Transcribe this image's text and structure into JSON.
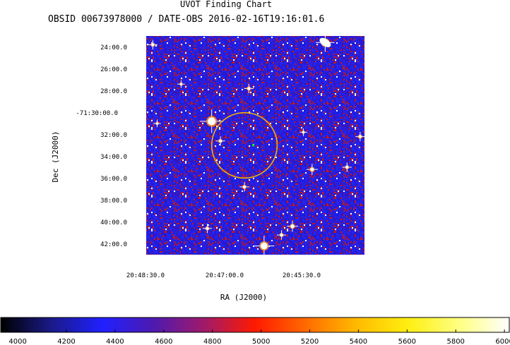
{
  "chart_data": {
    "type": "heatmap",
    "title": "UVOT Finding Chart",
    "subtitle": "OBSID 00673978000 / DATE-OBS 2016-02-16T19:16:01.6",
    "xlabel": "RA (J2000)",
    "ylabel": "Dec (J2000)",
    "x_ticks": [
      "20:48:30.0",
      "20:47:00.0",
      "20:45:30.0"
    ],
    "y_ticks": [
      "24:00.0",
      "26:00.0",
      "28:00.0",
      "-71:30:00.0",
      "32:00.0",
      "34:00.0",
      "36:00.0",
      "38:00.0",
      "40:00.0",
      "42:00.0"
    ],
    "colorbar": {
      "ticks": [
        4000,
        4200,
        4400,
        4600,
        4800,
        5000,
        5200,
        5400,
        5600,
        5800,
        6000
      ],
      "range": [
        3930,
        6020
      ],
      "colors": [
        "#000000",
        "#1a1a8a",
        "#2020ff",
        "#4d1ab0",
        "#a01a6a",
        "#ff1a00",
        "#ff6a00",
        "#ffbb00",
        "#ffee10",
        "#ffff80",
        "#ffffff"
      ]
    },
    "background_colors": [
      "#1c1ce0",
      "#2424ee",
      "#3a16b8",
      "#c41818",
      "#ffffff"
    ],
    "marker_color": "#f0b000",
    "stars": [
      {
        "x": 0.03,
        "y": 0.96,
        "size": 1.0
      },
      {
        "x": 0.82,
        "y": 0.97,
        "size": 2.0
      },
      {
        "x": 0.47,
        "y": 0.76,
        "size": 1.0
      },
      {
        "x": 0.3,
        "y": 0.61,
        "size": 2.5
      },
      {
        "x": 0.34,
        "y": 0.52,
        "size": 1.0
      },
      {
        "x": 0.45,
        "y": 0.31,
        "size": 1.0
      },
      {
        "x": 0.76,
        "y": 0.39,
        "size": 1.2
      },
      {
        "x": 0.92,
        "y": 0.4,
        "size": 1.0
      },
      {
        "x": 0.98,
        "y": 0.54,
        "size": 1.0
      },
      {
        "x": 0.72,
        "y": 0.56,
        "size": 0.8
      },
      {
        "x": 0.28,
        "y": 0.12,
        "size": 1.0
      },
      {
        "x": 0.67,
        "y": 0.13,
        "size": 1.2
      },
      {
        "x": 0.54,
        "y": 0.04,
        "size": 2.2
      },
      {
        "x": 0.62,
        "y": 0.09,
        "size": 1.0
      },
      {
        "x": 0.05,
        "y": 0.6,
        "size": 0.8
      },
      {
        "x": 0.16,
        "y": 0.78,
        "size": 0.8
      }
    ],
    "circle": {
      "cx": 0.45,
      "cy": 0.5,
      "r": 0.15
    },
    "target": {
      "x": 0.49,
      "y": 0.5
    }
  }
}
